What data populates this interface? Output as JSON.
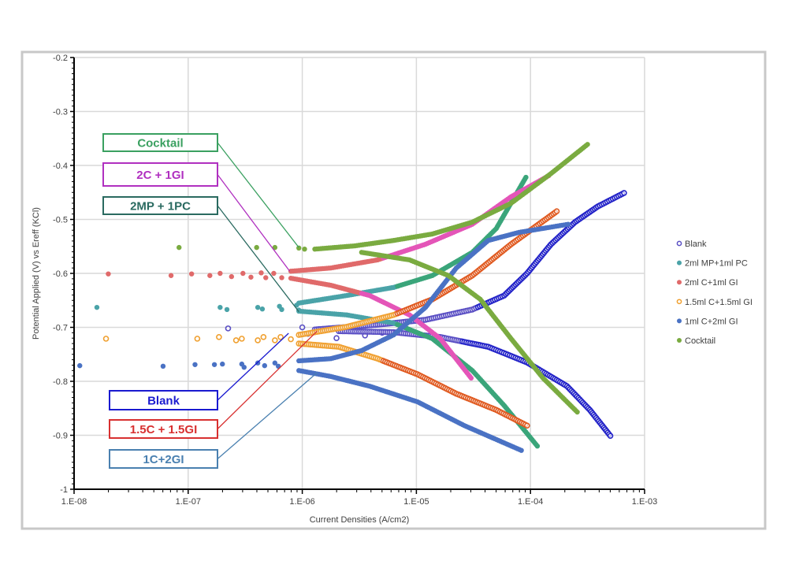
{
  "chart_data": {
    "type": "scatter",
    "title": "",
    "xlabel": "Current Densities (A/cm2)",
    "ylabel": "Potential Applied (V) vs Ereff (KCl)",
    "xscale": "log",
    "xlim": [
      1e-08,
      0.001
    ],
    "ylim": [
      -1,
      -0.2
    ],
    "x_ticks": [
      "1.E-08",
      "1.E-07",
      "1.E-06",
      "1.E-05",
      "1.E-04",
      "1.E-03"
    ],
    "y_ticks": [
      "-0.2",
      "-0.3",
      "-0.4",
      "-0.5",
      "-0.6",
      "-0.7",
      "-0.8",
      "-0.9",
      "-1"
    ],
    "grid": true,
    "legend_position": "right",
    "point_format": "[log10(current density), potential]",
    "series": [
      {
        "name": "Blank",
        "color": "#5a4fc4",
        "dense_color": "#2222c8",
        "hollow": true,
        "scatter": [
          [
            -6.65,
            -0.702
          ],
          [
            -6.0,
            -0.7
          ],
          [
            -5.95,
            -0.712
          ],
          [
            -5.8,
            -0.705
          ],
          [
            -5.7,
            -0.72
          ],
          [
            -5.55,
            -0.7
          ],
          [
            -5.45,
            -0.715
          ],
          [
            -5.3,
            -0.71
          ]
        ],
        "anodic": [
          [
            -5.89,
            -0.704
          ],
          [
            -5.34,
            -0.695
          ],
          [
            -4.92,
            -0.686
          ],
          [
            -4.51,
            -0.667
          ],
          [
            -4.23,
            -0.641
          ],
          [
            -4.03,
            -0.6
          ],
          [
            -3.82,
            -0.546
          ],
          [
            -3.61,
            -0.505
          ],
          [
            -3.41,
            -0.476
          ],
          [
            -3.18,
            -0.451
          ]
        ],
        "cathodic": [
          [
            -5.68,
            -0.707
          ],
          [
            -5.2,
            -0.709
          ],
          [
            -4.79,
            -0.718
          ],
          [
            -4.37,
            -0.736
          ],
          [
            -4.03,
            -0.765
          ],
          [
            -3.68,
            -0.809
          ],
          [
            -3.48,
            -0.853
          ],
          [
            -3.3,
            -0.901
          ]
        ]
      },
      {
        "name": "2ml MP+1ml PC",
        "color": "#4aa3a8",
        "dense_color": "#3aa57a",
        "hollow": false,
        "scatter": [
          [
            -7.8,
            -0.663
          ],
          [
            -6.72,
            -0.663
          ],
          [
            -6.66,
            -0.667
          ],
          [
            -6.39,
            -0.663
          ],
          [
            -6.35,
            -0.666
          ],
          [
            -6.2,
            -0.661
          ],
          [
            -6.18,
            -0.667
          ],
          [
            -6.05,
            -0.659
          ],
          [
            -6.03,
            -0.668
          ]
        ],
        "anodic": [
          [
            -6.03,
            -0.655
          ],
          [
            -5.61,
            -0.641
          ],
          [
            -5.2,
            -0.626
          ],
          [
            -4.86,
            -0.604
          ],
          [
            -4.51,
            -0.561
          ],
          [
            -4.3,
            -0.517
          ],
          [
            -4.04,
            -0.422
          ]
        ],
        "cathodic": [
          [
            -6.03,
            -0.67
          ],
          [
            -5.61,
            -0.677
          ],
          [
            -5.2,
            -0.692
          ],
          [
            -4.86,
            -0.721
          ],
          [
            -4.51,
            -0.78
          ],
          [
            -4.23,
            -0.845
          ],
          [
            -3.94,
            -0.92
          ]
        ]
      },
      {
        "name": "2ml C+1ml GI",
        "color": "#e06a6a",
        "dense_color": "#e455b8",
        "hollow": false,
        "scatter": [
          [
            -7.7,
            -0.601
          ],
          [
            -7.15,
            -0.604
          ],
          [
            -6.97,
            -0.601
          ],
          [
            -6.81,
            -0.604
          ],
          [
            -6.72,
            -0.6
          ],
          [
            -6.62,
            -0.606
          ],
          [
            -6.52,
            -0.6
          ],
          [
            -6.45,
            -0.607
          ],
          [
            -6.36,
            -0.599
          ],
          [
            -6.32,
            -0.608
          ],
          [
            -6.25,
            -0.6
          ],
          [
            -6.18,
            -0.608
          ]
        ],
        "anodic": [
          [
            -6.1,
            -0.596
          ],
          [
            -5.75,
            -0.59
          ],
          [
            -5.34,
            -0.575
          ],
          [
            -4.92,
            -0.546
          ],
          [
            -4.51,
            -0.509
          ],
          [
            -4.17,
            -0.458
          ],
          [
            -3.84,
            -0.419
          ]
        ],
        "cathodic": [
          [
            -6.1,
            -0.609
          ],
          [
            -5.75,
            -0.622
          ],
          [
            -5.41,
            -0.641
          ],
          [
            -5.06,
            -0.677
          ],
          [
            -4.79,
            -0.721
          ],
          [
            -4.52,
            -0.794
          ]
        ]
      },
      {
        "name": "1.5ml C+1.5ml GI",
        "color": "#f0a030",
        "dense_color": "#e05a20",
        "hollow": true,
        "scatter": [
          [
            -7.72,
            -0.721
          ],
          [
            -6.92,
            -0.721
          ],
          [
            -6.73,
            -0.718
          ],
          [
            -6.58,
            -0.724
          ],
          [
            -6.53,
            -0.721
          ],
          [
            -6.39,
            -0.724
          ],
          [
            -6.34,
            -0.718
          ],
          [
            -6.24,
            -0.724
          ],
          [
            -6.19,
            -0.718
          ],
          [
            -6.1,
            -0.722
          ]
        ],
        "anodic": [
          [
            -6.03,
            -0.714
          ],
          [
            -5.61,
            -0.699
          ],
          [
            -5.2,
            -0.677
          ],
          [
            -4.86,
            -0.648
          ],
          [
            -4.51,
            -0.604
          ],
          [
            -4.17,
            -0.546
          ],
          [
            -3.77,
            -0.485
          ]
        ],
        "cathodic": [
          [
            -6.03,
            -0.73
          ],
          [
            -5.68,
            -0.736
          ],
          [
            -5.34,
            -0.758
          ],
          [
            -4.99,
            -0.787
          ],
          [
            -4.65,
            -0.823
          ],
          [
            -4.3,
            -0.853
          ],
          [
            -4.03,
            -0.882
          ]
        ]
      },
      {
        "name": "1ml C+2ml GI",
        "color": "#4a72c4",
        "dense_color": "#4a72c4",
        "hollow": false,
        "scatter": [
          [
            -7.95,
            -0.771
          ],
          [
            -7.22,
            -0.772
          ],
          [
            -6.94,
            -0.769
          ],
          [
            -6.77,
            -0.769
          ],
          [
            -6.7,
            -0.768
          ],
          [
            -6.53,
            -0.768
          ],
          [
            -6.51,
            -0.774
          ],
          [
            -6.39,
            -0.766
          ],
          [
            -6.33,
            -0.771
          ],
          [
            -6.24,
            -0.766
          ],
          [
            -6.21,
            -0.772
          ]
        ],
        "anodic": [
          [
            -6.03,
            -0.762
          ],
          [
            -5.75,
            -0.758
          ],
          [
            -5.48,
            -0.743
          ],
          [
            -5.2,
            -0.714
          ],
          [
            -4.92,
            -0.663
          ],
          [
            -4.65,
            -0.59
          ],
          [
            -4.37,
            -0.539
          ],
          [
            -4.1,
            -0.524
          ],
          [
            -3.67,
            -0.509
          ]
        ],
        "cathodic": [
          [
            -6.03,
            -0.78
          ],
          [
            -5.75,
            -0.791
          ],
          [
            -5.41,
            -0.809
          ],
          [
            -4.99,
            -0.838
          ],
          [
            -4.58,
            -0.882
          ],
          [
            -4.08,
            -0.928
          ]
        ]
      },
      {
        "name": "Cocktail",
        "color": "#7aab40",
        "dense_color": "#7aab40",
        "hollow": false,
        "scatter": [
          [
            -7.08,
            -0.552
          ],
          [
            -6.4,
            -0.552
          ],
          [
            -6.24,
            -0.552
          ],
          [
            -6.03,
            -0.553
          ],
          [
            -5.98,
            -0.555
          ]
        ],
        "anodic": [
          [
            -5.89,
            -0.555
          ],
          [
            -5.54,
            -0.549
          ],
          [
            -5.2,
            -0.539
          ],
          [
            -4.86,
            -0.527
          ],
          [
            -4.51,
            -0.505
          ],
          [
            -4.17,
            -0.47
          ],
          [
            -3.82,
            -0.415
          ],
          [
            -3.5,
            -0.361
          ]
        ],
        "cathodic": [
          [
            -5.48,
            -0.561
          ],
          [
            -5.06,
            -0.575
          ],
          [
            -4.72,
            -0.604
          ],
          [
            -4.44,
            -0.648
          ],
          [
            -4.17,
            -0.721
          ],
          [
            -3.89,
            -0.794
          ],
          [
            -3.59,
            -0.857
          ]
        ]
      }
    ],
    "annotations": [
      {
        "text": "Cocktail",
        "color": "#3aa060",
        "target": [
          -6.03,
          -0.552
        ]
      },
      {
        "text": "2C + 1GI",
        "color": "#b030c0",
        "target": [
          -6.11,
          -0.596
        ]
      },
      {
        "text": "2MP + 1PC",
        "color": "#2a6a60",
        "target": [
          -6.03,
          -0.671
        ]
      },
      {
        "text": "Blank",
        "color": "#1a1ad0",
        "target": [
          -6.12,
          -0.711
        ]
      },
      {
        "text": "1.5C + 1.5GI",
        "color": "#d83030",
        "target": [
          -5.87,
          -0.707
        ]
      },
      {
        "text": "1C+2GI",
        "color": "#4a80b0",
        "target": [
          -5.87,
          -0.784
        ]
      }
    ]
  }
}
